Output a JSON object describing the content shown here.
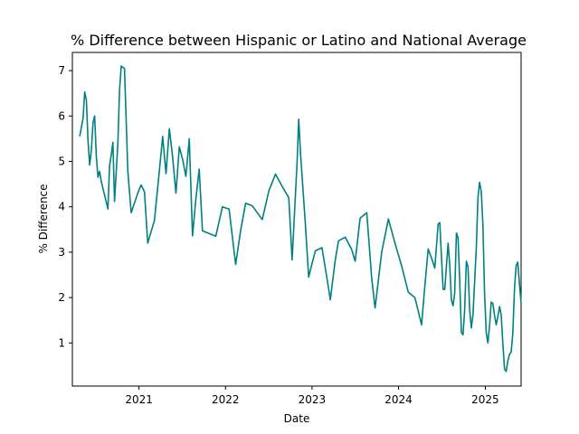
{
  "chart_data": {
    "type": "line",
    "title": "% Difference between Hispanic or Latino and National Average",
    "xlabel": "Date",
    "ylabel": "% Difference",
    "x_ticks": [
      "2021",
      "2022",
      "2023",
      "2024",
      "2025"
    ],
    "y_ticks": [
      1,
      2,
      3,
      4,
      5,
      6,
      7
    ],
    "xlim": [
      "2020-03-26",
      "2025-06-01"
    ],
    "ylim": [
      0.05,
      7.4
    ],
    "grid": false,
    "line_color": "#008080",
    "series": [
      {
        "values": [
          [
            "2020-04-26",
            5.55
          ],
          [
            "2020-05-10",
            5.95
          ],
          [
            "2020-05-17",
            6.53
          ],
          [
            "2020-05-24",
            6.35
          ],
          [
            "2020-05-31",
            5.45
          ],
          [
            "2020-06-07",
            4.92
          ],
          [
            "2020-06-14",
            5.25
          ],
          [
            "2020-06-21",
            5.85
          ],
          [
            "2020-06-28",
            6.0
          ],
          [
            "2020-07-05",
            5.1
          ],
          [
            "2020-07-12",
            4.65
          ],
          [
            "2020-07-19",
            4.78
          ],
          [
            "2020-07-26",
            4.55
          ],
          [
            "2020-08-23",
            3.95
          ],
          [
            "2020-08-30",
            4.9
          ],
          [
            "2020-09-06",
            5.15
          ],
          [
            "2020-09-13",
            5.42
          ],
          [
            "2020-09-20",
            4.12
          ],
          [
            "2020-10-04",
            5.4
          ],
          [
            "2020-10-11",
            6.55
          ],
          [
            "2020-10-18",
            7.1
          ],
          [
            "2020-11-01",
            7.05
          ],
          [
            "2020-11-15",
            4.78
          ],
          [
            "2020-11-29",
            3.87
          ],
          [
            "2020-12-27",
            4.3
          ],
          [
            "2021-01-10",
            4.48
          ],
          [
            "2021-01-24",
            4.33
          ],
          [
            "2021-02-07",
            3.2
          ],
          [
            "2021-03-07",
            3.7
          ],
          [
            "2021-03-28",
            4.8
          ],
          [
            "2021-04-11",
            5.55
          ],
          [
            "2021-04-25",
            4.73
          ],
          [
            "2021-05-09",
            5.72
          ],
          [
            "2021-05-23",
            5.1
          ],
          [
            "2021-06-06",
            4.3
          ],
          [
            "2021-06-20",
            5.32
          ],
          [
            "2021-07-04",
            5.05
          ],
          [
            "2021-07-18",
            4.67
          ],
          [
            "2021-08-01",
            5.5
          ],
          [
            "2021-08-15",
            3.36
          ],
          [
            "2021-08-29",
            4.17
          ],
          [
            "2021-09-12",
            4.83
          ],
          [
            "2021-09-26",
            3.47
          ],
          [
            "2021-11-21",
            3.35
          ],
          [
            "2021-12-19",
            4.0
          ],
          [
            "2022-01-16",
            3.95
          ],
          [
            "2022-02-13",
            2.73
          ],
          [
            "2022-03-06",
            3.48
          ],
          [
            "2022-03-27",
            4.08
          ],
          [
            "2022-04-24",
            4.02
          ],
          [
            "2022-06-05",
            3.72
          ],
          [
            "2022-07-03",
            4.35
          ],
          [
            "2022-07-31",
            4.72
          ],
          [
            "2022-08-28",
            4.45
          ],
          [
            "2022-09-25",
            4.2
          ],
          [
            "2022-10-09",
            2.83
          ],
          [
            "2022-10-30",
            4.98
          ],
          [
            "2022-11-06",
            5.93
          ],
          [
            "2022-11-13",
            5.2
          ],
          [
            "2022-12-04",
            3.6
          ],
          [
            "2022-12-18",
            2.45
          ],
          [
            "2023-01-01",
            2.75
          ],
          [
            "2023-01-15",
            3.03
          ],
          [
            "2023-02-12",
            3.1
          ],
          [
            "2023-03-12",
            2.2
          ],
          [
            "2023-03-19",
            1.95
          ],
          [
            "2023-04-09",
            2.83
          ],
          [
            "2023-04-23",
            3.25
          ],
          [
            "2023-05-21",
            3.33
          ],
          [
            "2023-06-18",
            3.05
          ],
          [
            "2023-07-02",
            2.8
          ],
          [
            "2023-07-23",
            3.75
          ],
          [
            "2023-08-20",
            3.87
          ],
          [
            "2023-09-10",
            2.42
          ],
          [
            "2023-09-24",
            1.77
          ],
          [
            "2023-10-22",
            3.0
          ],
          [
            "2023-11-19",
            3.73
          ],
          [
            "2023-12-17",
            3.2
          ],
          [
            "2024-01-14",
            2.7
          ],
          [
            "2024-02-11",
            2.12
          ],
          [
            "2024-03-10",
            2.0
          ],
          [
            "2024-04-07",
            1.4
          ],
          [
            "2024-04-21",
            2.25
          ],
          [
            "2024-05-05",
            3.07
          ],
          [
            "2024-05-19",
            2.87
          ],
          [
            "2024-06-02",
            2.65
          ],
          [
            "2024-06-16",
            3.62
          ],
          [
            "2024-06-23",
            3.65
          ],
          [
            "2024-07-07",
            2.18
          ],
          [
            "2024-07-14",
            2.18
          ],
          [
            "2024-07-28",
            3.2
          ],
          [
            "2024-08-04",
            2.72
          ],
          [
            "2024-08-11",
            1.95
          ],
          [
            "2024-08-18",
            1.82
          ],
          [
            "2024-08-25",
            2.1
          ],
          [
            "2024-09-01",
            3.42
          ],
          [
            "2024-09-08",
            3.32
          ],
          [
            "2024-09-15",
            2.4
          ],
          [
            "2024-09-22",
            1.23
          ],
          [
            "2024-09-29",
            1.18
          ],
          [
            "2024-10-06",
            1.72
          ],
          [
            "2024-10-13",
            2.8
          ],
          [
            "2024-10-20",
            2.68
          ],
          [
            "2024-10-27",
            1.75
          ],
          [
            "2024-11-03",
            1.33
          ],
          [
            "2024-11-10",
            1.62
          ],
          [
            "2024-11-24",
            3.1
          ],
          [
            "2024-12-01",
            4.2
          ],
          [
            "2024-12-08",
            4.54
          ],
          [
            "2024-12-15",
            4.33
          ],
          [
            "2024-12-22",
            3.6
          ],
          [
            "2024-12-29",
            2.1
          ],
          [
            "2025-01-05",
            1.22
          ],
          [
            "2025-01-12",
            1.0
          ],
          [
            "2025-01-19",
            1.4
          ],
          [
            "2025-01-26",
            1.9
          ],
          [
            "2025-02-02",
            1.87
          ],
          [
            "2025-02-09",
            1.6
          ],
          [
            "2025-02-16",
            1.4
          ],
          [
            "2025-02-23",
            1.58
          ],
          [
            "2025-03-02",
            1.8
          ],
          [
            "2025-03-09",
            1.62
          ],
          [
            "2025-03-16",
            1.0
          ],
          [
            "2025-03-23",
            0.42
          ],
          [
            "2025-03-30",
            0.37
          ],
          [
            "2025-04-06",
            0.6
          ],
          [
            "2025-04-13",
            0.75
          ],
          [
            "2025-04-20",
            0.8
          ],
          [
            "2025-04-27",
            1.2
          ],
          [
            "2025-05-04",
            2.2
          ],
          [
            "2025-05-11",
            2.7
          ],
          [
            "2025-05-18",
            2.78
          ],
          [
            "2025-05-25",
            2.3
          ],
          [
            "2025-06-01",
            1.88
          ]
        ]
      }
    ]
  }
}
